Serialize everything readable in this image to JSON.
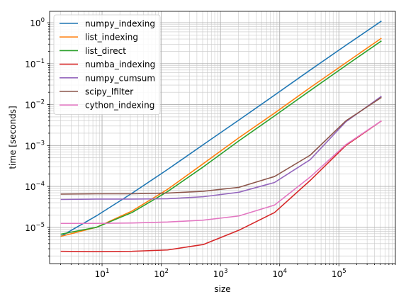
{
  "chart_data": {
    "type": "line",
    "xlabel": "size",
    "ylabel": "time [seconds]",
    "xscale": "log",
    "yscale": "log",
    "xlim": [
      1.3,
      900000
    ],
    "ylim": [
      1.3e-06,
      1.9
    ],
    "grid": "major and minor",
    "legend_position": "upper-left",
    "x_ticks": [
      {
        "value": 10,
        "base": "10",
        "exp": "1"
      },
      {
        "value": 100,
        "base": "10",
        "exp": "2"
      },
      {
        "value": 1000,
        "base": "10",
        "exp": "3"
      },
      {
        "value": 10000,
        "base": "10",
        "exp": "4"
      },
      {
        "value": 100000,
        "base": "10",
        "exp": "5"
      }
    ],
    "y_ticks": [
      {
        "value": 1e-05,
        "base": "10",
        "exp": "−5"
      },
      {
        "value": 0.0001,
        "base": "10",
        "exp": "−4"
      },
      {
        "value": 0.001,
        "base": "10",
        "exp": "−3"
      },
      {
        "value": 0.01,
        "base": "10",
        "exp": "−2"
      },
      {
        "value": 0.1,
        "base": "10",
        "exp": "−1"
      },
      {
        "value": 1,
        "base": "10",
        "exp": "0"
      }
    ],
    "x": [
      2,
      8,
      32,
      128,
      512,
      2048,
      8192,
      32768,
      131072,
      524288
    ],
    "series": [
      {
        "name": "numpy_indexing",
        "color": "#1f77b4",
        "values": [
          6e-06,
          1.9e-05,
          6.8e-05,
          0.00026,
          0.00105,
          0.0042,
          0.017,
          0.07,
          0.28,
          1.1
        ]
      },
      {
        "name": "list_indexing",
        "color": "#ff7f0e",
        "values": [
          6e-06,
          1e-05,
          2.5e-05,
          8.5e-05,
          0.00036,
          0.00155,
          0.0062,
          0.026,
          0.105,
          0.42
        ]
      },
      {
        "name": "list_direct",
        "color": "#2ca02c",
        "values": [
          6.8e-06,
          1e-05,
          2.3e-05,
          7.5e-05,
          0.0003,
          0.0013,
          0.0053,
          0.022,
          0.09,
          0.36
        ]
      },
      {
        "name": "numba_indexing",
        "color": "#d62728",
        "values": [
          2.6e-06,
          2.55e-06,
          2.6e-06,
          2.8e-06,
          3.8e-06,
          8.5e-06,
          2.3e-05,
          0.00014,
          0.001,
          0.004
        ]
      },
      {
        "name": "numpy_cumsum",
        "color": "#9467bd",
        "values": [
          4.8e-05,
          4.9e-05,
          4.9e-05,
          5e-05,
          5.6e-05,
          7.2e-05,
          0.000125,
          0.00045,
          0.0038,
          0.016
        ]
      },
      {
        "name": "scipy_lfilter",
        "color": "#8c564b",
        "values": [
          6.5e-05,
          6.6e-05,
          6.6e-05,
          6.9e-05,
          7.6e-05,
          9.5e-05,
          0.000175,
          0.00058,
          0.004,
          0.015
        ]
      },
      {
        "name": "cython_indexing",
        "color": "#e377c2",
        "values": [
          1.25e-05,
          1.25e-05,
          1.28e-05,
          1.35e-05,
          1.5e-05,
          1.9e-05,
          3.5e-05,
          0.00017,
          0.00105,
          0.004
        ]
      }
    ]
  }
}
